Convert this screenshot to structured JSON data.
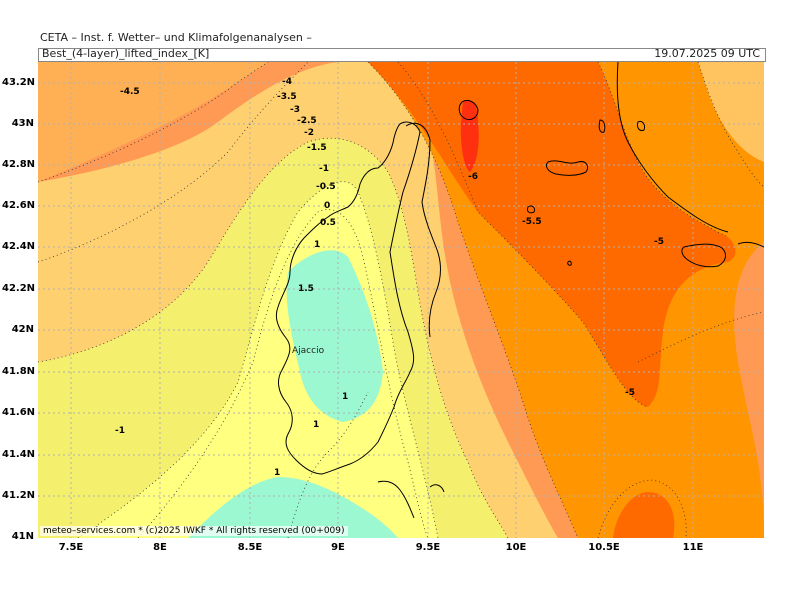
{
  "header": {
    "title": "CETA – Inst. f. Wetter– und Klimafolgenanalysen –",
    "parameter": "Best_(4-layer)_lifted_index_[K]",
    "datetime": "19.07.2025 09 UTC"
  },
  "credit": "meteo–services.com * (c)2025 IWKF * All rights reserved (00+009)",
  "axes": {
    "lat_ticks": [
      "43.2N",
      "43N",
      "42.8N",
      "42.6N",
      "42.4N",
      "42.2N",
      "42N",
      "41.8N",
      "41.6N",
      "41.4N",
      "41.2N",
      "41N"
    ],
    "lon_ticks": [
      "7.5E",
      "8E",
      "8.5E",
      "9E",
      "9.5E",
      "10E",
      "10.5E",
      "11E"
    ]
  },
  "city": "Ajaccio",
  "contour_labels": [
    "-4.5",
    "-4",
    "-3.5",
    "-3",
    "-2.5",
    "-2",
    "-1.5",
    "-1",
    "-0.5",
    "0",
    "0.5",
    "1",
    "1.5",
    "-6",
    "-5.5",
    "-5",
    "-5",
    "-1",
    "1",
    "1",
    "1"
  ],
  "colors": {
    "li_pos": "#9cf8d0",
    "li_0_1": "#ffff80",
    "li_m1_0": "#f5ef6e",
    "li_m2_m1": "#ffd070",
    "li_m3_m2": "#ffb055",
    "li_m4_m3": "#ff9a55",
    "li_m5_m4": "#ff9500",
    "li_m6_m5": "#ff6a00",
    "li_lt_m6": "#ff3010"
  }
}
